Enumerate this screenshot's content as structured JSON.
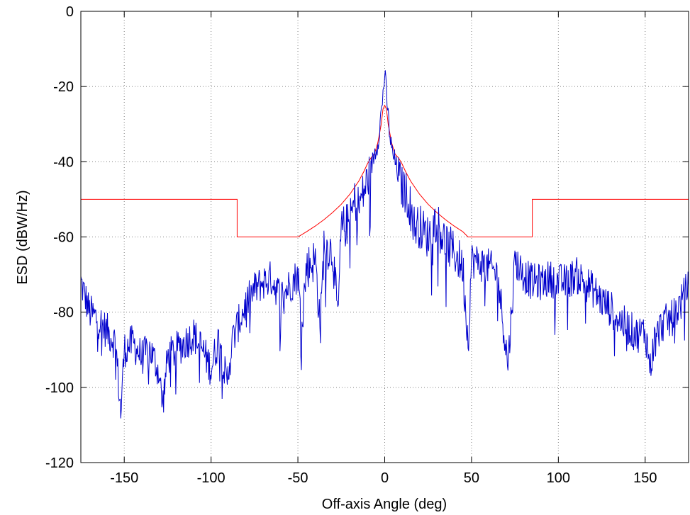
{
  "chart_data": {
    "type": "line",
    "title": "",
    "xlabel": "Off-axis Angle (deg)",
    "ylabel": "ESD (dBW/Hz)",
    "xlim": [
      -175,
      175
    ],
    "ylim": [
      -120,
      0
    ],
    "xticks": [
      -150,
      -100,
      -50,
      0,
      50,
      100,
      150
    ],
    "xtick_labels": [
      "-150",
      "-100",
      "-50",
      "0",
      "50",
      "100",
      "150"
    ],
    "yticks": [
      -120,
      -100,
      -80,
      -60,
      -40,
      -20,
      0
    ],
    "ytick_labels": [
      "-120",
      "-100",
      "-80",
      "-60",
      "-40",
      "-20",
      "0"
    ],
    "grid": true,
    "series": [
      {
        "color": "#ff0000",
        "style": "mask",
        "x": [
          -175,
          -85,
          -85,
          -50,
          -45,
          -40,
          -35,
          -30,
          -25,
          -20,
          -15,
          -12,
          -10,
          -8,
          -6,
          -5,
          -4,
          -3,
          -2,
          -1.5,
          -1,
          0,
          1,
          1.5,
          2,
          3,
          4,
          5,
          6,
          8,
          10,
          12,
          15,
          20,
          25,
          30,
          35,
          40,
          45,
          48,
          85,
          85,
          175
        ],
        "y": [
          -50,
          -50,
          -60,
          -60,
          -58.6,
          -57.1,
          -55.4,
          -53.5,
          -51.3,
          -48.6,
          -45.2,
          -42.6,
          -40.6,
          -39,
          -38,
          -36.5,
          -35,
          -32.5,
          -30,
          -28,
          -26,
          -25,
          -26,
          -28,
          -30,
          -32.5,
          -35,
          -36.5,
          -38,
          -39,
          -40.6,
          -42.6,
          -45.2,
          -48.6,
          -51.3,
          -53.5,
          -55.4,
          -57.1,
          -58.6,
          -60,
          -60,
          -50,
          -50
        ]
      },
      {
        "color": "#0000cc",
        "style": "measured",
        "x": [
          -175,
          -170,
          -165,
          -160,
          -155,
          -152,
          -150,
          -145,
          -140,
          -135,
          -130,
          -128,
          -125,
          -120,
          -115,
          -110,
          -105,
          -100,
          -95,
          -91,
          -88,
          -85,
          -80,
          -75,
          -70,
          -65,
          -60,
          -55,
          -50,
          -48,
          -45,
          -40,
          -37,
          -35,
          -30,
          -27,
          -25,
          -20,
          -17,
          -15,
          -12,
          -10,
          -8,
          -6,
          -4,
          -3,
          -2,
          -1,
          0,
          1,
          2,
          3,
          4,
          6,
          8,
          10,
          12,
          15,
          17,
          20,
          25,
          30,
          35,
          40,
          45,
          48,
          50,
          55,
          60,
          65,
          71,
          75,
          80,
          85,
          90,
          95,
          100,
          105,
          110,
          115,
          120,
          125,
          130,
          135,
          140,
          145,
          150,
          153,
          155,
          160,
          165,
          170,
          175
        ],
        "y": [
          -72,
          -80,
          -82,
          -85,
          -88,
          -107,
          -90,
          -88,
          -92,
          -90,
          -96,
          -105,
          -92,
          -90,
          -88,
          -86,
          -90,
          -95,
          -86,
          -100,
          -88,
          -84,
          -78,
          -74,
          -72,
          -71,
          -76,
          -73,
          -70,
          -84,
          -68,
          -66,
          -84,
          -62,
          -64,
          -82,
          -58,
          -56,
          -50,
          -52,
          -48,
          -45,
          -42,
          -38,
          -35,
          -31,
          -27,
          -22,
          -16.5,
          -22,
          -28,
          -33,
          -37,
          -40,
          -44,
          -47,
          -48,
          -52,
          -57,
          -57,
          -60,
          -55,
          -62,
          -64,
          -68,
          -88,
          -66,
          -67,
          -68,
          -70,
          -94,
          -66,
          -70,
          -72,
          -72,
          -71,
          -72,
          -72,
          -70,
          -72,
          -74,
          -77,
          -79,
          -82,
          -84,
          -86,
          -85,
          -95,
          -88,
          -83,
          -82,
          -78,
          -73
        ]
      }
    ]
  }
}
